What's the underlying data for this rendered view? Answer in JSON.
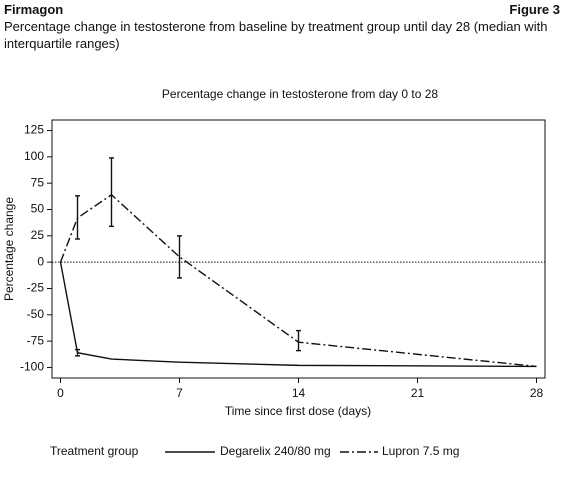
{
  "header": {
    "product": "Firmagon",
    "figure": "Figure 3",
    "subtitle": "Percentage change in testosterone from baseline by treatment group until day 28 (median with interquartile ranges)"
  },
  "chart_data": {
    "type": "line",
    "title": "Percentage change in testosterone from day 0 to 28",
    "xlabel": "Time since first dose (days)",
    "ylabel": "Percentage change",
    "x": [
      0,
      1,
      3,
      7,
      14,
      28
    ],
    "series": [
      {
        "name": "Degarelix 240/80 mg",
        "color": "#111111",
        "style": "solid",
        "values": [
          0,
          -86,
          -92,
          -95,
          -98,
          -99
        ],
        "q1": [
          null,
          -89,
          null,
          null,
          null,
          null
        ],
        "q3": [
          null,
          -83,
          null,
          null,
          null,
          null
        ]
      },
      {
        "name": "Lupron 7.5 mg",
        "color": "#111111",
        "style": "dashdot",
        "values": [
          0,
          42,
          64,
          5,
          -76,
          -99
        ],
        "q1": [
          null,
          22,
          34,
          -15,
          -84,
          null
        ],
        "q3": [
          null,
          63,
          99,
          25,
          -65,
          null
        ]
      }
    ],
    "xlim": [
      -0.5,
      28.5
    ],
    "xticks": [
      0,
      7,
      14,
      21,
      28
    ],
    "ylim": [
      -110,
      135
    ],
    "yticks": [
      -100,
      -75,
      -50,
      -25,
      0,
      25,
      50,
      75,
      100,
      125
    ],
    "reference_line": 0,
    "legend_title": "Treatment group",
    "legend": "bottom"
  }
}
